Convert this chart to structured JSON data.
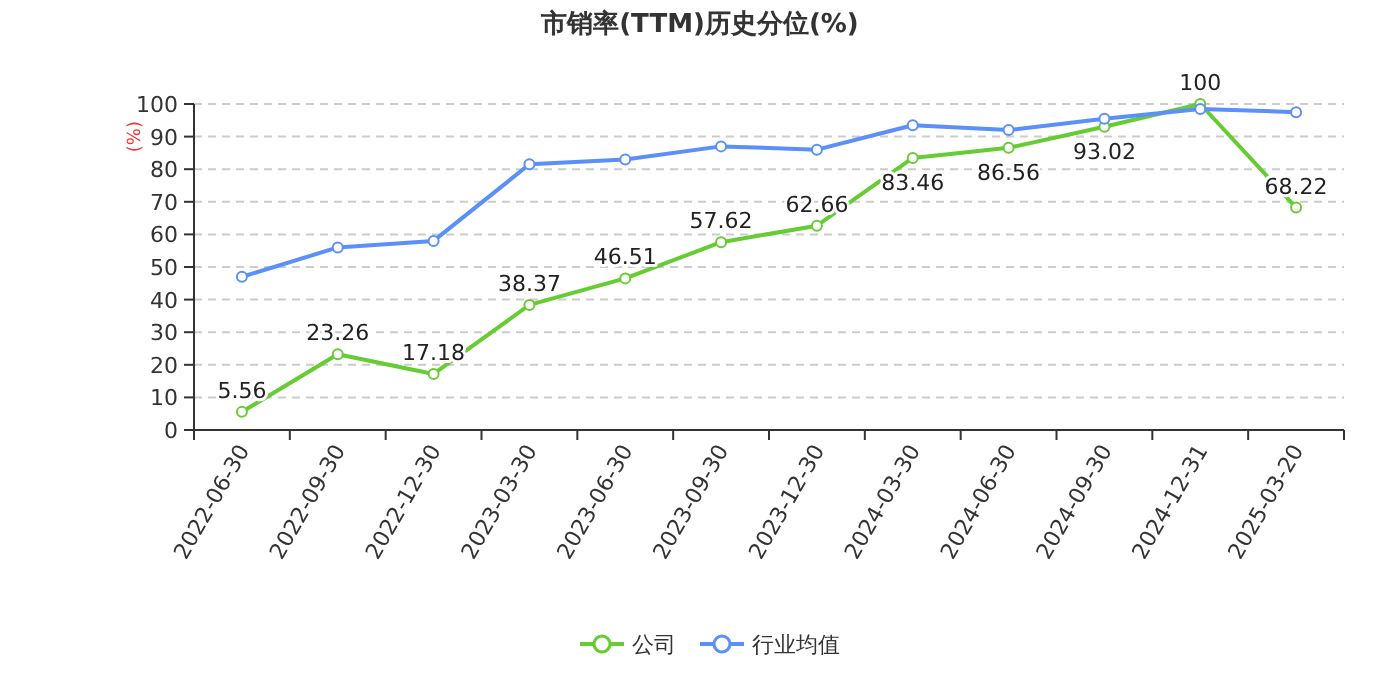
{
  "chart_data": {
    "type": "line",
    "title": "市销率(TTM)历史分位(%)",
    "ylabel": "(%)",
    "categories": [
      "2022-06-30",
      "2022-09-30",
      "2022-12-30",
      "2023-03-30",
      "2023-06-30",
      "2023-09-30",
      "2023-12-30",
      "2024-03-30",
      "2024-06-30",
      "2024-09-30",
      "2024-12-31",
      "2025-03-20"
    ],
    "series": [
      {
        "name": "公司",
        "color": "#66cc33",
        "values": [
          5.56,
          23.26,
          17.18,
          38.37,
          46.51,
          57.62,
          62.66,
          83.46,
          86.56,
          93.02,
          100,
          68.22
        ],
        "value_labels": [
          "5.56",
          "23.26",
          "17.18",
          "38.37",
          "46.51",
          "57.62",
          "62.66",
          "83.46",
          "86.56",
          "93.02",
          "100",
          "68.22"
        ]
      },
      {
        "name": "行业均值",
        "color": "#5b8ff9",
        "values": [
          47,
          56,
          58,
          81.5,
          83,
          87,
          86,
          93.5,
          92,
          95.5,
          98.5,
          97.5
        ]
      }
    ],
    "ylim": [
      0,
      100
    ],
    "yticks": [
      0,
      10,
      20,
      30,
      40,
      50,
      60,
      70,
      80,
      90,
      100
    ],
    "grid": "y",
    "legend": "bottom",
    "marker": "circle",
    "line_style": "solid"
  }
}
